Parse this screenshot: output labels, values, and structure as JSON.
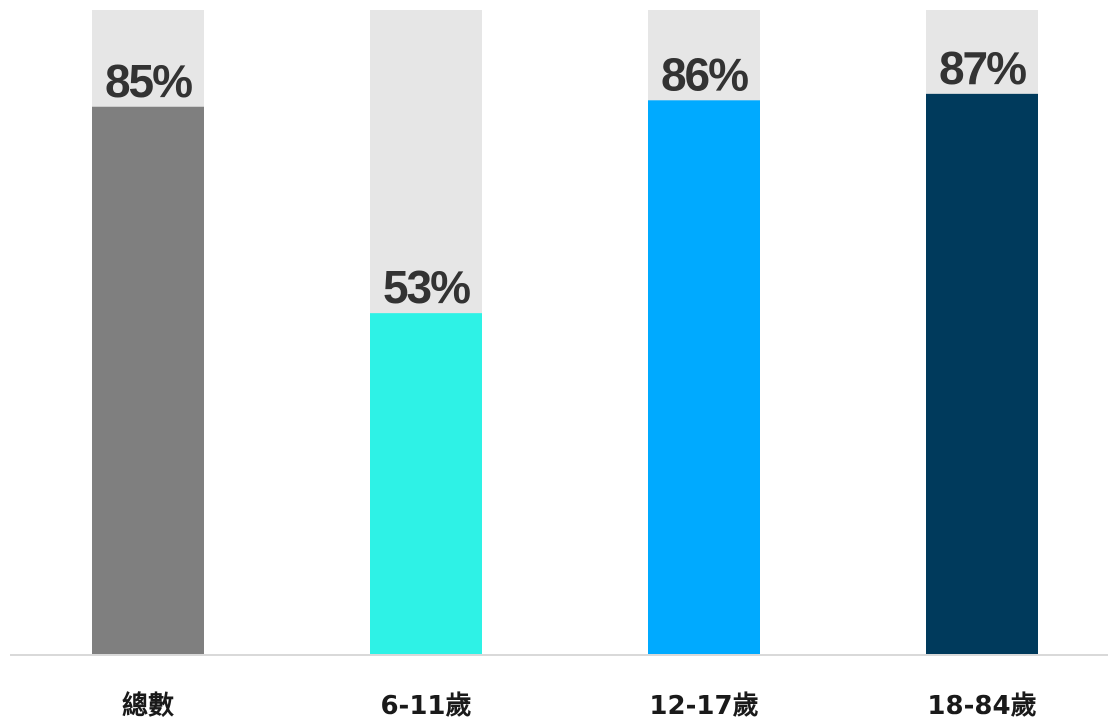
{
  "chart_data": {
    "type": "bar",
    "categories": [
      "總數",
      "6-11歲",
      "12-17歲",
      "18-84歲"
    ],
    "values": [
      85,
      53,
      86,
      87
    ],
    "value_labels": [
      "85%",
      "53%",
      "86%",
      "87%"
    ],
    "unit": "%",
    "ylim": [
      0,
      100
    ],
    "grid": false,
    "legend": "none",
    "colors": {
      "bars": [
        "#7f7f7f",
        "#2ef2e6",
        "#00aaff",
        "#003a5c"
      ],
      "track": "#e6e6e6",
      "baseline": "#d9d9d9"
    }
  }
}
